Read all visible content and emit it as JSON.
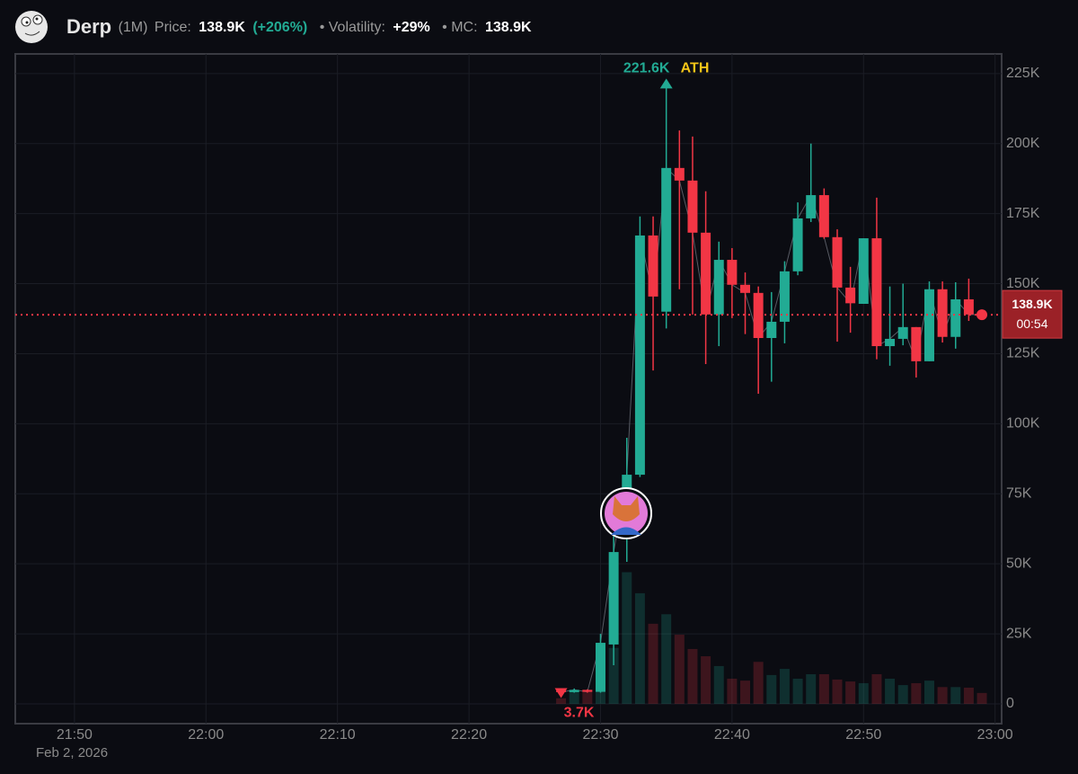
{
  "header": {
    "name": "Derp",
    "interval": "(1M)",
    "price_label": "Price:",
    "price": "138.9K",
    "change": "(+206%)",
    "volatility_label": "• Volatility:",
    "volatility": "+29%",
    "mc_label": "• MC:",
    "mc": "138.9K"
  },
  "chart_data": {
    "type": "candlestick",
    "x": [
      1347,
      1348,
      1349,
      1350,
      1351,
      1352,
      1353,
      1354,
      1355,
      1356,
      1357,
      1358,
      1359,
      1360,
      1361,
      1362,
      1363,
      1364,
      1365,
      1366,
      1367,
      1368,
      1369,
      1370,
      1371,
      1372,
      1373,
      1374,
      1375,
      1376,
      1377,
      1378,
      1379
    ],
    "open": [
      4.8,
      4.2,
      5.0,
      4.3,
      21.2,
      59.7,
      81.8,
      167.2,
      140,
      191.3,
      186.8,
      168.2,
      139,
      158.5,
      149.6,
      146.7,
      130.6,
      136.4,
      154.4,
      173.3,
      181.6,
      166.6,
      148.6,
      142.8,
      166.2,
      127.7,
      130.3,
      134.5,
      122.3,
      148,
      131,
      144.4,
      139
    ],
    "high": [
      5.0,
      5.5,
      5.2,
      25,
      62,
      95,
      174,
      174,
      221.6,
      204.7,
      202.5,
      183,
      165,
      162.7,
      154,
      149,
      147,
      158,
      179,
      200,
      184,
      169.4,
      156,
      166.2,
      180.7,
      149,
      150,
      134.5,
      150.8,
      150.8,
      150.5,
      151.8,
      139
    ],
    "low": [
      3.7,
      4.0,
      4.0,
      4.0,
      13.8,
      50.7,
      81,
      119,
      134,
      148,
      139,
      121.3,
      127.7,
      137.7,
      132,
      110.7,
      115,
      128.7,
      153,
      172,
      166,
      129.3,
      132.5,
      142.8,
      123,
      120.7,
      128,
      116.5,
      122.3,
      129,
      126.8,
      136.7,
      138.9
    ],
    "close": [
      4.2,
      5.0,
      4.3,
      21.8,
      54.2,
      81.8,
      167.2,
      145.4,
      191.3,
      186.8,
      168.2,
      139,
      158.5,
      149.6,
      146.7,
      130.6,
      136.4,
      154.4,
      173.3,
      181.6,
      166.6,
      148.6,
      143,
      166.2,
      127.7,
      130.3,
      134.5,
      122.3,
      148,
      131,
      144.4,
      139,
      138.9
    ],
    "volume": [
      2,
      5,
      5,
      14,
      20,
      47,
      39.5,
      28.6,
      32,
      24.7,
      19.6,
      17,
      13.5,
      9,
      8.3,
      15,
      10.3,
      12.5,
      9,
      10.6,
      10.6,
      8.7,
      8,
      7.4,
      10.6,
      9,
      6.7,
      7.4,
      8.3,
      6,
      6,
      5.8,
      3.9
    ],
    "up_color": "#22ab94",
    "down_color": "#f23645",
    "xlim": [
      1305.5,
      1380.5
    ],
    "xticks": [
      {
        "value": 1310,
        "label": "21:50"
      },
      {
        "value": 1320,
        "label": "22:00"
      },
      {
        "value": 1330,
        "label": "22:10"
      },
      {
        "value": 1340,
        "label": "22:20"
      },
      {
        "value": 1350,
        "label": "22:30"
      },
      {
        "value": 1360,
        "label": "22:40"
      },
      {
        "value": 1370,
        "label": "22:50"
      },
      {
        "value": 1380,
        "label": "23:00"
      }
    ],
    "date_label": "Feb 2, 2026",
    "ylim": [
      -7.06,
      232.0
    ],
    "yticks": [
      0,
      {
        "value": 25,
        "label": "25K"
      },
      {
        "value": 50,
        "label": "50K"
      },
      {
        "value": 75,
        "label": "75K"
      },
      {
        "value": 100,
        "label": "100K"
      },
      {
        "value": 125,
        "label": "125K"
      },
      {
        "value": 150,
        "label": "150K"
      },
      {
        "value": 175,
        "label": "175K"
      },
      {
        "value": 200,
        "label": "200K"
      },
      {
        "value": 225,
        "label": "225K"
      }
    ],
    "grid": true,
    "ath": {
      "x": 1355,
      "value": 221.6,
      "label": "221.6K",
      "text": "ATH"
    },
    "low_marker": {
      "x": 1347,
      "value": 3.7,
      "label": "3.7K"
    },
    "current_price": {
      "value": 138.9,
      "label": "138.9K",
      "countdown": "00:54"
    }
  }
}
